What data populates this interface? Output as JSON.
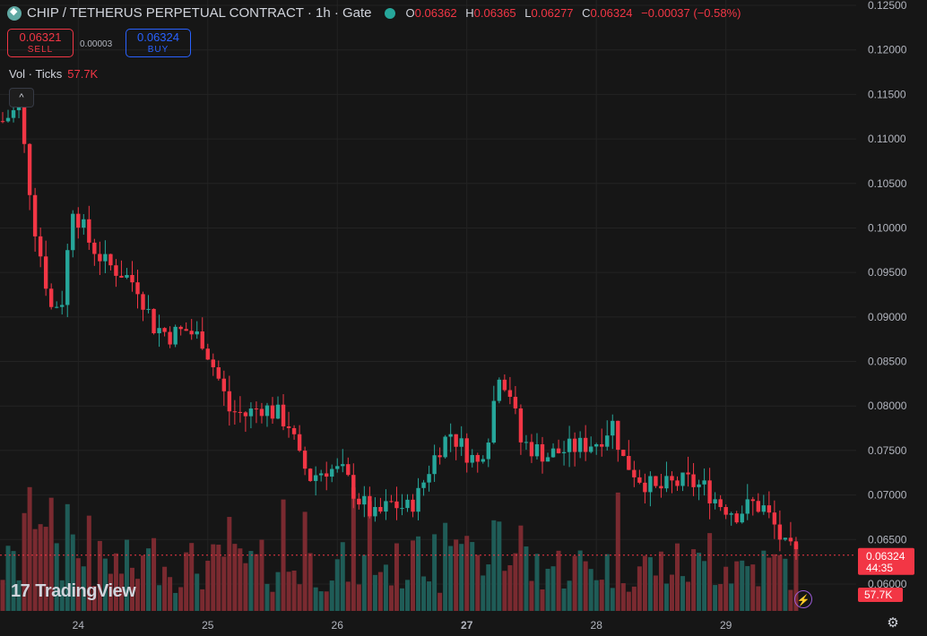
{
  "header": {
    "title": "CHIP / TETHERUS PERPETUAL CONTRACT · 1h · Gate",
    "ohlc": [
      {
        "k": "O",
        "v": "0.06362"
      },
      {
        "k": "H",
        "v": "0.06365"
      },
      {
        "k": "L",
        "v": "0.06277"
      },
      {
        "k": "C",
        "v": "0.06324"
      }
    ],
    "change": "−0.00037 (−0.58%)"
  },
  "trade": {
    "sell_price": "0.06321",
    "sell_label": "SELL",
    "spread": "0.00003",
    "buy_price": "0.06324",
    "buy_label": "BUY"
  },
  "volume_legend": {
    "label": "Vol · Ticks",
    "value": "57.7K"
  },
  "collapse_glyph": "^",
  "brand": {
    "name": "TradingView",
    "mark": "17"
  },
  "colors": {
    "up": "#26a69a",
    "down": "#f23645",
    "vol_up": "#1f5c57",
    "vol_down": "#7a2a30",
    "bg": "#161616",
    "grid": "#232323"
  },
  "chart_data": {
    "type": "candlestick",
    "timeframe": "1h",
    "y_ticks": [
      "0.12500",
      "0.12000",
      "0.11500",
      "0.11000",
      "0.10500",
      "0.10000",
      "0.09500",
      "0.09000",
      "0.08500",
      "0.08000",
      "0.07500",
      "0.07000",
      "0.06500",
      "0.06000"
    ],
    "ylim": [
      0.0585,
      0.125
    ],
    "x_ticks": [
      {
        "label": "24",
        "bold": false,
        "index": 14
      },
      {
        "label": "25",
        "bold": false,
        "index": 38
      },
      {
        "label": "26",
        "bold": false,
        "index": 62
      },
      {
        "label": "27",
        "bold": true,
        "index": 86
      },
      {
        "label": "28",
        "bold": false,
        "index": 110
      },
      {
        "label": "29",
        "bold": false,
        "index": 134
      }
    ],
    "last_price": "0.06324",
    "countdown": "44:35",
    "last_volume": "57.7K",
    "anchors": [
      [
        0,
        0.112
      ],
      [
        3,
        0.1135
      ],
      [
        6,
        0.1
      ],
      [
        9,
        0.091
      ],
      [
        11,
        0.092
      ],
      [
        13,
        0.1025
      ],
      [
        16,
        0.0985
      ],
      [
        19,
        0.096
      ],
      [
        22,
        0.095
      ],
      [
        25,
        0.0935
      ],
      [
        28,
        0.089
      ],
      [
        31,
        0.088
      ],
      [
        34,
        0.0885
      ],
      [
        37,
        0.0875
      ],
      [
        40,
        0.083
      ],
      [
        42,
        0.0795
      ],
      [
        45,
        0.079
      ],
      [
        48,
        0.08
      ],
      [
        51,
        0.079
      ],
      [
        53,
        0.078
      ],
      [
        55,
        0.074
      ],
      [
        57,
        0.072
      ],
      [
        60,
        0.073
      ],
      [
        63,
        0.0725
      ],
      [
        66,
        0.0695
      ],
      [
        69,
        0.0675
      ],
      [
        72,
        0.069
      ],
      [
        75,
        0.0685
      ],
      [
        77,
        0.07
      ],
      [
        79,
        0.073
      ],
      [
        81,
        0.0755
      ],
      [
        83,
        0.077
      ],
      [
        85,
        0.0755
      ],
      [
        88,
        0.0735
      ],
      [
        90,
        0.077
      ],
      [
        92,
        0.084
      ],
      [
        94,
        0.0815
      ],
      [
        96,
        0.076
      ],
      [
        99,
        0.075
      ],
      [
        101,
        0.0745
      ],
      [
        104,
        0.075
      ],
      [
        107,
        0.0755
      ],
      [
        110,
        0.076
      ],
      [
        113,
        0.078
      ],
      [
        115,
        0.074
      ],
      [
        118,
        0.072
      ],
      [
        121,
        0.0705
      ],
      [
        124,
        0.0712
      ],
      [
        127,
        0.0715
      ],
      [
        130,
        0.0708
      ],
      [
        133,
        0.069
      ],
      [
        136,
        0.068
      ],
      [
        139,
        0.069
      ],
      [
        141,
        0.0685
      ],
      [
        143,
        0.0665
      ],
      [
        145,
        0.064
      ],
      [
        147,
        0.0632
      ]
    ],
    "volume_max_ticks": 172000
  }
}
